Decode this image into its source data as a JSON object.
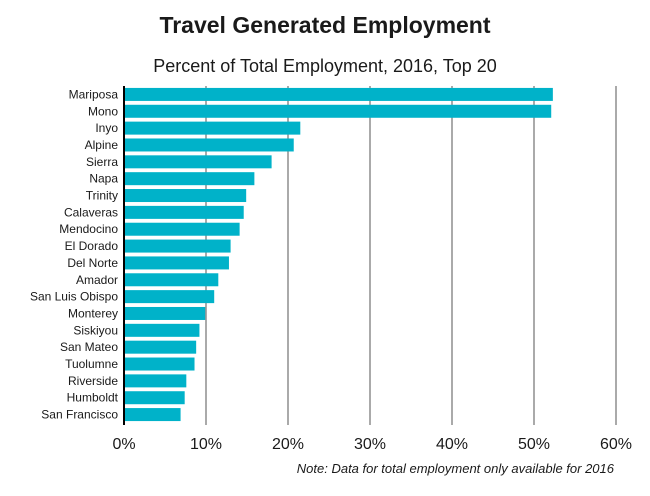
{
  "chart_data": {
    "type": "bar",
    "orientation": "horizontal",
    "title": "Travel Generated Employment",
    "subtitle": "Percent of Total Employment, 2016, Top 20",
    "note": "Note: Data for total employment only available for 2016",
    "categories": [
      "Mariposa",
      "Mono",
      "Inyo",
      "Alpine",
      "Sierra",
      "Napa",
      "Trinity",
      "Calaveras",
      "Mendocino",
      "El Dorado",
      "Del Norte",
      "Amador",
      "San Luis Obispo",
      "Monterey",
      "Siskiyou",
      "San Mateo",
      "Tuolumne",
      "Riverside",
      "Humboldt",
      "San Francisco"
    ],
    "values": [
      52.3,
      52.1,
      21.5,
      20.7,
      18.0,
      15.9,
      14.9,
      14.6,
      14.1,
      13.0,
      12.8,
      11.5,
      11.0,
      9.9,
      9.2,
      8.8,
      8.6,
      7.6,
      7.4,
      6.9
    ],
    "xlim": [
      0,
      60
    ],
    "xticks": [
      "0%",
      "10%",
      "20%",
      "30%",
      "40%",
      "50%",
      "60%"
    ],
    "grid": true,
    "colors": {
      "bar": "#00b2c9",
      "axis": "#000000",
      "grid": "#555555",
      "text": "#1a1a1a"
    }
  }
}
